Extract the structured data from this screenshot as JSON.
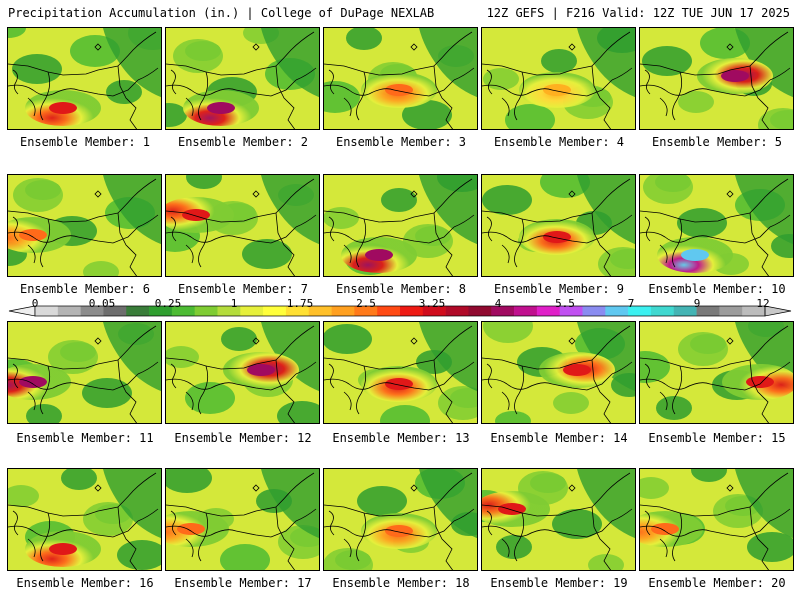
{
  "header": {
    "title_left": "Precipitation Accumulation (in.) | College of DuPage NEXLAB",
    "title_right": "12Z GEFS | F216 Valid: 12Z TUE JUN 17 2025"
  },
  "panels": [
    {
      "label": "Ensemble Member: 1",
      "hotspot": "southwest",
      "intensity": 2
    },
    {
      "label": "Ensemble Member: 2",
      "hotspot": "southwest",
      "intensity": 3
    },
    {
      "label": "Ensemble Member: 3",
      "hotspot": "central",
      "intensity": 1
    },
    {
      "label": "Ensemble Member: 4",
      "hotspot": "central",
      "intensity": 0
    },
    {
      "label": "Ensemble Member: 5",
      "hotspot": "north",
      "intensity": 3
    },
    {
      "label": "Ensemble Member: 6",
      "hotspot": "west",
      "intensity": 1
    },
    {
      "label": "Ensemble Member: 7",
      "hotspot": "northwest",
      "intensity": 2
    },
    {
      "label": "Ensemble Member: 8",
      "hotspot": "southwest",
      "intensity": 3
    },
    {
      "label": "Ensemble Member: 9",
      "hotspot": "central",
      "intensity": 2
    },
    {
      "label": "Ensemble Member: 10",
      "hotspot": "southwest",
      "intensity": 4
    },
    {
      "label": "Ensemble Member: 11",
      "hotspot": "west",
      "intensity": 3
    },
    {
      "label": "Ensemble Member: 12",
      "hotspot": "north",
      "intensity": 3
    },
    {
      "label": "Ensemble Member: 13",
      "hotspot": "central",
      "intensity": 2
    },
    {
      "label": "Ensemble Member: 14",
      "hotspot": "north",
      "intensity": 2
    },
    {
      "label": "Ensemble Member: 15",
      "hotspot": "east",
      "intensity": 2
    },
    {
      "label": "Ensemble Member: 16",
      "hotspot": "southwest",
      "intensity": 2
    },
    {
      "label": "Ensemble Member: 17",
      "hotspot": "west",
      "intensity": 1
    },
    {
      "label": "Ensemble Member: 18",
      "hotspot": "central",
      "intensity": 1
    },
    {
      "label": "Ensemble Member: 19",
      "hotspot": "northwest",
      "intensity": 2
    },
    {
      "label": "Ensemble Member: 20",
      "hotspot": "west",
      "intensity": 1
    }
  ],
  "colorbar": {
    "labels": [
      "0",
      "0.05",
      "0.25",
      "1",
      "1.75",
      "2.5",
      "3.25",
      "4",
      "5.5",
      "7",
      "9",
      "12"
    ],
    "colors": [
      "#d9d9d9",
      "#b4b4b4",
      "#8c8c8c",
      "#6e6e6e",
      "#3a7d3a",
      "#2f9e2f",
      "#4dbb33",
      "#7fcc33",
      "#b4dc3c",
      "#e6f03c",
      "#ffff3c",
      "#ffe033",
      "#ffc02a",
      "#ffa020",
      "#ff7a1a",
      "#ff4a14",
      "#ee1a14",
      "#d00c1c",
      "#b00a28",
      "#900a30",
      "#a00a60",
      "#c0108e",
      "#e020c8",
      "#c050f0",
      "#8a8cf0",
      "#60c8f0",
      "#3cf0f0",
      "#40d8d0",
      "#44b4b4",
      "#7a7a7a",
      "#9c9c9c",
      "#bcbcbc"
    ]
  }
}
